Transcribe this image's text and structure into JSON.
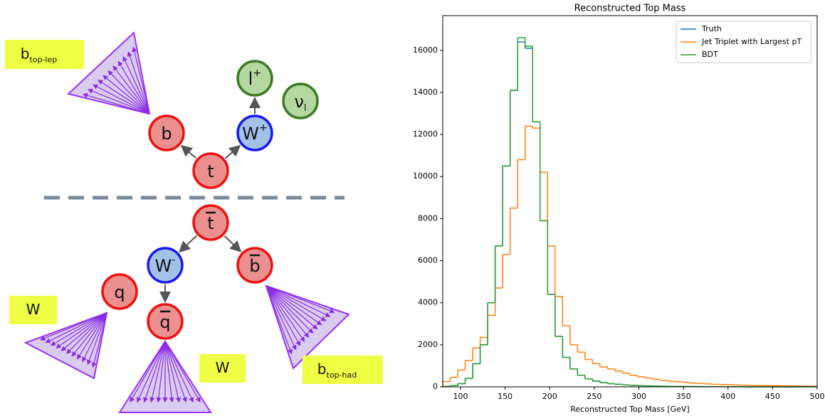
{
  "diagram": {
    "nodes": [
      {
        "label": "t"
      },
      {
        "label": "b"
      },
      {
        "label": "W",
        "sup": "+"
      },
      {
        "label": "l",
        "sup": "+"
      },
      {
        "label": "ν",
        "sub": "l"
      },
      {
        "label": "t"
      },
      {
        "label": "W",
        "sup": "-"
      },
      {
        "label": "b"
      },
      {
        "label": "q"
      },
      {
        "label": "q"
      }
    ],
    "tags": [
      {
        "label": "b",
        "sub": "top-lep"
      },
      {
        "label": "W"
      },
      {
        "label": "W"
      },
      {
        "label": "b",
        "sub": "top-had"
      }
    ]
  },
  "chart_data": {
    "type": "histogram",
    "title": "Reconstructed Top Mass",
    "x_label": "Reconstructed Top Mass [GeV]",
    "bins": [
      80,
      88.4,
      96.8,
      105.2,
      113.6,
      122,
      130.4,
      138.8,
      147.2,
      155.6,
      164,
      172.4,
      180.8,
      189.2,
      197.6,
      206,
      214.4,
      222.8,
      231.2,
      239.6,
      248,
      256.4,
      264.8,
      273.2,
      281.6,
      290,
      298.4,
      306.8,
      315.2,
      323.6,
      332,
      340.4,
      348.8,
      357.2,
      365.6,
      374,
      382.4,
      390.8,
      399.2,
      407.6,
      416,
      424.4,
      432.8,
      441.2,
      449.6,
      458,
      466.4,
      474.8,
      483.2,
      491.6,
      500
    ],
    "series": [
      {
        "name": "Truth",
        "color": "#1f77b4",
        "values": [
          20,
          60,
          150,
          400,
          1100,
          2000,
          4000,
          6700,
          10500,
          14100,
          16400,
          16100,
          12600,
          7900,
          4400,
          2400,
          1400,
          850,
          550,
          380,
          270,
          200,
          150,
          120,
          90,
          70,
          55,
          45,
          35,
          30,
          25,
          20,
          18,
          15,
          12,
          10,
          9,
          8,
          7,
          6,
          5,
          5,
          4,
          4,
          3,
          3,
          2,
          2,
          2,
          2
        ]
      },
      {
        "name": "Jet Triplet with Largest pT",
        "color": "#ff7f0e",
        "values": [
          250,
          450,
          800,
          1250,
          1850,
          2350,
          3400,
          4700,
          6300,
          8500,
          10800,
          12400,
          12300,
          10200,
          6700,
          4300,
          2900,
          2000,
          1650,
          1300,
          1100,
          950,
          850,
          750,
          650,
          550,
          480,
          420,
          360,
          310,
          270,
          240,
          210,
          180,
          160,
          140,
          120,
          110,
          100,
          90,
          80,
          70,
          65,
          60,
          55,
          50,
          45,
          40,
          35,
          30
        ]
      },
      {
        "name": "BDT",
        "color": "#2ca02c",
        "values": [
          20,
          60,
          150,
          400,
          1100,
          2000,
          4000,
          6700,
          10500,
          14100,
          16600,
          16200,
          12600,
          7900,
          4400,
          2400,
          1400,
          850,
          550,
          380,
          270,
          200,
          150,
          120,
          90,
          70,
          55,
          45,
          35,
          30,
          25,
          20,
          18,
          15,
          12,
          10,
          9,
          8,
          7,
          6,
          5,
          5,
          4,
          4,
          3,
          3,
          2,
          2,
          2,
          2
        ]
      }
    ],
    "xlim": [
      80,
      500
    ],
    "xticks": [
      100,
      150,
      200,
      250,
      300,
      350,
      400,
      450,
      500
    ],
    "ylim": [
      0,
      17650
    ],
    "yticks": [
      0,
      2000,
      4000,
      6000,
      8000,
      10000,
      12000,
      14000,
      16000
    ],
    "grid": false,
    "legend": "upper right"
  }
}
